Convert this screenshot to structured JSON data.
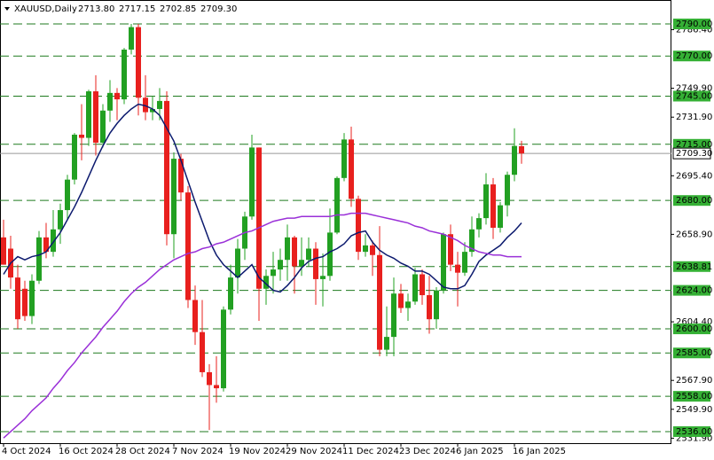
{
  "chart_data": {
    "type": "candlestick",
    "title": "XAUUSD,Daily",
    "ohlc_labels": [
      "2713.80",
      "2717.15",
      "2702.85",
      "2709.30"
    ],
    "categories": [
      "4 Oct 2024",
      null,
      null,
      null,
      null,
      null,
      null,
      null,
      "16 Oct 2024",
      null,
      null,
      null,
      null,
      null,
      null,
      null,
      "28 Oct 2024",
      null,
      null,
      null,
      null,
      null,
      null,
      null,
      "7 Nov 2024",
      null,
      null,
      null,
      null,
      null,
      null,
      null,
      "19 Nov 2024",
      null,
      null,
      null,
      null,
      null,
      null,
      null,
      "29 Nov 2024",
      null,
      null,
      null,
      null,
      null,
      null,
      null,
      "11 Dec 2024",
      null,
      null,
      null,
      null,
      null,
      null,
      null,
      "23 Dec 2024",
      null,
      null,
      null,
      null,
      null,
      null,
      null,
      "6 Jan 2025",
      null,
      null,
      null,
      null,
      null,
      null,
      null,
      "16 Jan 2025",
      null
    ],
    "open": [
      2657,
      2650,
      2632,
      2625,
      2608,
      2630,
      2657,
      2648,
      2662,
      2674,
      2693,
      2721,
      2719,
      2748,
      2716,
      2736,
      2747,
      2743,
      2774,
      2788,
      2744,
      2735,
      2737,
      2742,
      2659,
      2706,
      2685,
      2618,
      2598,
      2573,
      2565,
      2563,
      2612,
      2632,
      2650,
      2670,
      2713,
      2625,
      2633,
      2637,
      2643,
      2657,
      2639,
      2643,
      2650,
      2631,
      2633,
      2660,
      2694,
      2718,
      2681,
      2648,
      2652,
      2646,
      2587,
      2595,
      2622,
      2613,
      2617,
      2634,
      2621,
      2606,
      2624,
      2659,
      2640,
      2635,
      2648,
      2662,
      2669,
      2690,
      2663,
      2677,
      2696,
      2713.8
    ],
    "high": [
      2668,
      2658,
      2640,
      2630,
      2634,
      2661,
      2666,
      2674,
      2678,
      2696,
      2722,
      2740,
      2749,
      2758,
      2740,
      2755,
      2750,
      2775,
      2790,
      2790,
      2758,
      2745,
      2750,
      2748,
      2710,
      2709,
      2689,
      2627,
      2618,
      2578,
      2583,
      2614,
      2640,
      2656,
      2673,
      2721,
      2713,
      2637,
      2648,
      2650,
      2665,
      2658,
      2657,
      2657,
      2654,
      2647,
      2675,
      2695,
      2722,
      2726,
      2683,
      2659,
      2655,
      2664,
      2614,
      2632,
      2628,
      2622,
      2638,
      2637,
      2633,
      2626,
      2660,
      2665,
      2648,
      2654,
      2670,
      2672,
      2697,
      2694,
      2679,
      2698,
      2725,
      2717.15
    ],
    "low": [
      2640,
      2625,
      2600,
      2605,
      2603,
      2628,
      2644,
      2645,
      2653,
      2668,
      2690,
      2705,
      2714,
      2708,
      2713,
      2729,
      2730,
      2740,
      2771,
      2733,
      2730,
      2730,
      2730,
      2652,
      2644,
      2680,
      2613,
      2590,
      2570,
      2537,
      2554,
      2561,
      2609,
      2622,
      2643,
      2668,
      2605,
      2615,
      2622,
      2630,
      2630,
      2622,
      2633,
      2639,
      2615,
      2614,
      2630,
      2659,
      2692,
      2676,
      2643,
      2645,
      2633,
      2583,
      2583,
      2583,
      2610,
      2605,
      2615,
      2615,
      2597,
      2600,
      2622,
      2636,
      2614,
      2633,
      2645,
      2657,
      2665,
      2656,
      2660,
      2670,
      2692,
      2702.85
    ],
    "close": [
      2640,
      2632,
      2606,
      2608,
      2630,
      2657,
      2648,
      2662,
      2674,
      2693,
      2721,
      2719,
      2748,
      2716,
      2736,
      2747,
      2743,
      2774,
      2788,
      2744,
      2735,
      2737,
      2742,
      2659,
      2706,
      2685,
      2618,
      2598,
      2573,
      2565,
      2563,
      2612,
      2632,
      2650,
      2670,
      2713,
      2625,
      2633,
      2637,
      2643,
      2657,
      2639,
      2643,
      2650,
      2631,
      2633,
      2660,
      2694,
      2718,
      2681,
      2648,
      2652,
      2646,
      2587,
      2595,
      2622,
      2613,
      2617,
      2634,
      2621,
      2606,
      2624,
      2659,
      2640,
      2635,
      2648,
      2662,
      2669,
      2690,
      2663,
      2677,
      2696,
      2714,
      2709.3
    ],
    "up_color": "#22a022",
    "down_color": "#e8201e",
    "ma_lines": [
      {
        "color": "#0c1a6e",
        "values": [
          2634,
          2641,
          2645,
          2643,
          2645,
          2646,
          2648,
          2654,
          2660,
          2668,
          2676,
          2685,
          2695,
          2705,
          2714,
          2722,
          2728,
          2733,
          2737,
          2740,
          2739,
          2737,
          2733,
          2725,
          2717,
          2705,
          2692,
          2679,
          2667,
          2655,
          2646,
          2640,
          2636,
          2632,
          2636,
          2640,
          2632,
          2628,
          2624,
          2623,
          2627,
          2632,
          2638,
          2642,
          2644,
          2645,
          2648,
          2650,
          2653,
          2658,
          2660,
          2661,
          2654,
          2649,
          2646,
          2644,
          2641,
          2639,
          2636,
          2636,
          2634,
          2630,
          2626,
          2625,
          2625,
          2627,
          2634,
          2642,
          2646,
          2649,
          2652,
          2657,
          2661,
          2666
        ]
      },
      {
        "color": "#9a30d8",
        "values": [
          2532,
          2536,
          2540,
          2544,
          2549,
          2553,
          2557,
          2563,
          2568,
          2574,
          2579,
          2585,
          2590,
          2595,
          2601,
          2606,
          2611,
          2617,
          2622,
          2626,
          2629,
          2633,
          2637,
          2640,
          2643,
          2645,
          2647,
          2648,
          2650,
          2651,
          2653,
          2654,
          2656,
          2658,
          2660,
          2661,
          2663,
          2665,
          2667,
          2668,
          2669,
          2669,
          2670,
          2670,
          2670,
          2670,
          2670,
          2671,
          2671,
          2672,
          2672,
          2672,
          2671,
          2670,
          2669,
          2668,
          2667,
          2666,
          2664,
          2663,
          2661,
          2660,
          2659,
          2657,
          2655,
          2652,
          2650,
          2648,
          2647,
          2646,
          2646,
          2645,
          2645,
          2645
        ]
      }
    ],
    "ylim": [
      2528.8,
      2804.9
    ],
    "yticks": [
      {
        "value": 2786.4,
        "label": "2786.40"
      },
      {
        "value": 2749.9,
        "label": "2749.90"
      },
      {
        "value": 2731.9,
        "label": "2731.90"
      },
      {
        "value": 2695.4,
        "label": "2695.40"
      },
      {
        "value": 2658.9,
        "label": "2658.90"
      },
      {
        "value": 2604.4,
        "label": "2604.40"
      },
      {
        "value": 2567.9,
        "label": "2567.90"
      },
      {
        "value": 2549.9,
        "label": "2549.90"
      },
      {
        "value": 2531.9,
        "label": "2531.90"
      }
    ],
    "levels": [
      {
        "value": 2790,
        "label": "2790.00"
      },
      {
        "value": 2770,
        "label": "2770.00"
      },
      {
        "value": 2745,
        "label": "2745.00"
      },
      {
        "value": 2715,
        "label": "2715.00"
      },
      {
        "value": 2680,
        "label": "2680.00"
      },
      {
        "value": 2638.81,
        "label": "2638.81"
      },
      {
        "value": 2624,
        "label": "2624.00"
      },
      {
        "value": 2600,
        "label": "2600.00"
      },
      {
        "value": 2585,
        "label": "2585.00"
      },
      {
        "value": 2558,
        "label": "2558.00"
      },
      {
        "value": 2536,
        "label": "2536.00"
      }
    ],
    "level_color": "#1f7a1f",
    "level_label_color": "#35b035",
    "price_line": {
      "value": 2709.3,
      "label": "2709.30"
    }
  }
}
